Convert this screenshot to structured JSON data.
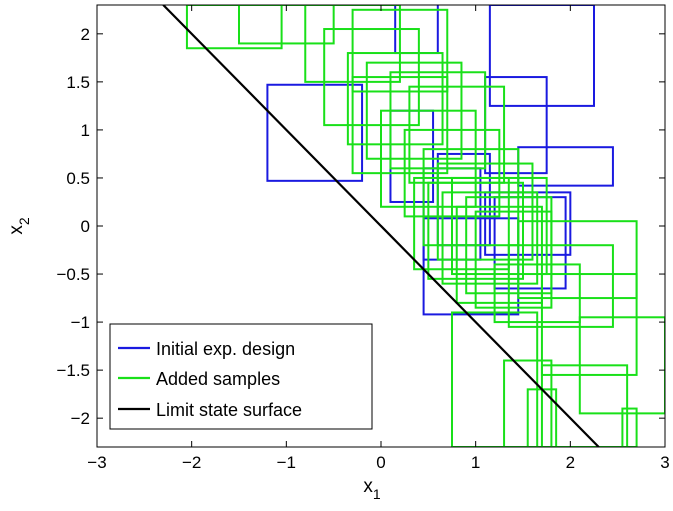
{
  "chart_data": {
    "type": "line",
    "xlabel": {
      "base": "x",
      "sub": "1"
    },
    "ylabel": {
      "base": "x",
      "sub": "2"
    },
    "xlim": [
      -3,
      3
    ],
    "ylim": [
      -2.3,
      2.3
    ],
    "x_ticks": [
      -3,
      -2,
      -1,
      0,
      1,
      2,
      3
    ],
    "y_ticks": [
      2,
      1.5,
      1,
      0.5,
      0,
      -0.5,
      -1,
      -1.5,
      -2
    ],
    "x_tick_labels": [
      "−3",
      "−2",
      "−1",
      "0",
      "1",
      "2",
      "3"
    ],
    "y_tick_labels": [
      "2",
      "1.5",
      "1",
      "0.5",
      "0",
      "−0.5",
      "−1",
      "−1.5",
      "−2"
    ],
    "grid": false,
    "legend_position": "bottom-left",
    "series": [
      {
        "name": "Initial exp. design",
        "color": "#1a1ae0",
        "style": "boxes",
        "boxes": [
          [
            -1.2,
            0.47,
            -0.2,
            1.47
          ],
          [
            0.15,
            1.8,
            0.6,
            2.5
          ],
          [
            1.15,
            1.25,
            2.25,
            2.3
          ],
          [
            1.1,
            0.55,
            1.75,
            1.55
          ],
          [
            0.6,
            -0.2,
            1.15,
            0.75
          ],
          [
            0.45,
            -0.35,
            1.05,
            0.6
          ],
          [
            1.45,
            0.42,
            2.45,
            0.82
          ],
          [
            1.1,
            -0.3,
            2.0,
            0.35
          ],
          [
            0.45,
            -0.92,
            1.45,
            0.08
          ],
          [
            1.2,
            -0.65,
            1.95,
            0.3
          ],
          [
            0.1,
            0.25,
            0.55,
            1.2
          ]
        ]
      },
      {
        "name": "Added samples",
        "color": "#19e019",
        "style": "boxes",
        "boxes": [
          [
            -2.05,
            1.85,
            -1.05,
            2.3
          ],
          [
            -1.5,
            1.9,
            -0.5,
            2.3
          ],
          [
            -0.8,
            1.5,
            0.2,
            2.3
          ],
          [
            -0.3,
            1.4,
            0.7,
            2.25
          ],
          [
            -0.6,
            1.05,
            0.4,
            2.05
          ],
          [
            -0.35,
            0.85,
            0.65,
            1.8
          ],
          [
            -0.15,
            0.7,
            0.85,
            1.7
          ],
          [
            0.1,
            0.6,
            1.1,
            1.6
          ],
          [
            0.3,
            0.45,
            1.3,
            1.45
          ],
          [
            -0.3,
            0.55,
            0.7,
            1.55
          ],
          [
            0.0,
            0.2,
            1.0,
            1.2
          ],
          [
            0.25,
            0.1,
            1.25,
            1.0
          ],
          [
            0.45,
            -0.2,
            1.45,
            0.8
          ],
          [
            0.6,
            -0.35,
            1.6,
            0.65
          ],
          [
            0.75,
            -0.5,
            1.75,
            0.5
          ],
          [
            0.9,
            -0.7,
            1.8,
            0.3
          ],
          [
            0.5,
            -0.55,
            1.5,
            0.45
          ],
          [
            0.35,
            -0.45,
            1.35,
            0.5
          ],
          [
            0.65,
            -0.6,
            1.65,
            0.35
          ],
          [
            0.8,
            -0.8,
            1.7,
            0.2
          ],
          [
            1.0,
            -0.85,
            1.8,
            0.15
          ],
          [
            1.35,
            -1.05,
            2.45,
            -0.2
          ],
          [
            1.2,
            -1.0,
            2.1,
            -0.4
          ],
          [
            1.45,
            -0.75,
            2.7,
            0.05
          ],
          [
            1.7,
            -1.55,
            2.7,
            -0.5
          ],
          [
            2.1,
            -1.95,
            3.0,
            -0.95
          ],
          [
            1.3,
            -2.3,
            1.8,
            -1.4
          ],
          [
            1.7,
            -2.3,
            2.6,
            -1.45
          ],
          [
            2.55,
            -2.3,
            2.7,
            -1.9
          ],
          [
            0.75,
            -2.3,
            1.65,
            -0.9
          ],
          [
            1.55,
            -2.3,
            1.85,
            -1.7
          ]
        ]
      },
      {
        "name": "Limit state surface",
        "color": "#000000",
        "style": "line",
        "x": [
          -2.3,
          2.3
        ],
        "y": [
          2.3,
          -2.3
        ]
      }
    ]
  }
}
